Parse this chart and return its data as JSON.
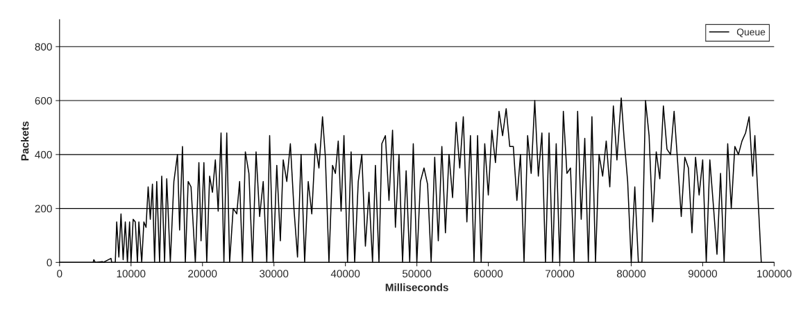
{
  "chart_data": {
    "type": "line",
    "xlabel": "Milliseconds",
    "ylabel": "Packets",
    "xlim": [
      0,
      100000
    ],
    "xticks": [
      0,
      10000,
      20000,
      30000,
      40000,
      50000,
      60000,
      70000,
      80000,
      90000,
      100000
    ],
    "ylim": [
      0,
      900
    ],
    "yticks": [
      0,
      200,
      400,
      600,
      800
    ],
    "grid": "y",
    "legend": "top right",
    "marker": "none",
    "line_style": "solid",
    "series": [
      {
        "name": "Queue",
        "color": "#000000",
        "x": [
          0,
          4700,
          4800,
          5000,
          6000,
          6100,
          7200,
          7300,
          7800,
          8000,
          8300,
          8600,
          8900,
          9200,
          9500,
          9800,
          10000,
          10300,
          10600,
          10900,
          11100,
          11500,
          11800,
          12100,
          12400,
          12700,
          13000,
          13300,
          13600,
          14000,
          14300,
          14700,
          15000,
          15500,
          16000,
          16500,
          16800,
          17200,
          17600,
          18000,
          18400,
          19000,
          19500,
          19800,
          20200,
          20600,
          21000,
          21400,
          21800,
          22200,
          22600,
          23000,
          23400,
          23800,
          24300,
          24800,
          25200,
          25600,
          26000,
          26500,
          27000,
          27500,
          28000,
          28500,
          29000,
          29400,
          29900,
          30400,
          30900,
          31300,
          31800,
          32300,
          32800,
          33300,
          33800,
          34300,
          34800,
          35300,
          35800,
          36300,
          36800,
          37200,
          37700,
          38200,
          38600,
          39000,
          39400,
          39800,
          40300,
          40800,
          41300,
          41800,
          42300,
          42800,
          43300,
          43800,
          44200,
          44700,
          45100,
          45600,
          46100,
          46600,
          47000,
          47500,
          48000,
          48500,
          49000,
          49500,
          50000,
          50500,
          51000,
          51500,
          52000,
          52500,
          53000,
          53500,
          54000,
          54500,
          55000,
          55500,
          56000,
          56500,
          57000,
          57500,
          58000,
          58500,
          59000,
          59500,
          60000,
          60500,
          61000,
          61500,
          62000,
          62500,
          63000,
          63500,
          64000,
          64500,
          65000,
          65500,
          66000,
          66500,
          67000,
          67500,
          68000,
          68500,
          69000,
          69500,
          70000,
          70500,
          71000,
          71500,
          72000,
          72500,
          73000,
          73500,
          74000,
          74500,
          75000,
          75500,
          76000,
          76500,
          77000,
          77500,
          78000,
          78600,
          79000,
          79500,
          80000,
          80500,
          81000,
          81500,
          82000,
          82500,
          83000,
          83500,
          84000,
          84500,
          85000,
          85500,
          86000,
          86500,
          87000,
          87500,
          88000,
          88500,
          89000,
          89500,
          90000,
          90500,
          91000,
          91500,
          92000,
          92500,
          93000,
          93500,
          94000,
          94500,
          95000,
          95500,
          96000,
          96500,
          97000,
          97300,
          98200
        ],
        "values": [
          0,
          0,
          10,
          0,
          3,
          0,
          15,
          0,
          0,
          150,
          20,
          180,
          10,
          150,
          0,
          150,
          0,
          160,
          150,
          0,
          150,
          0,
          150,
          130,
          280,
          160,
          290,
          0,
          300,
          0,
          320,
          0,
          310,
          0,
          300,
          400,
          120,
          430,
          0,
          300,
          280,
          0,
          370,
          80,
          370,
          0,
          320,
          260,
          380,
          190,
          480,
          0,
          480,
          0,
          200,
          180,
          300,
          0,
          410,
          330,
          0,
          410,
          170,
          300,
          0,
          470,
          0,
          360,
          80,
          380,
          300,
          440,
          200,
          20,
          400,
          0,
          300,
          180,
          440,
          350,
          540,
          390,
          0,
          360,
          330,
          450,
          190,
          470,
          0,
          410,
          0,
          300,
          400,
          60,
          260,
          0,
          360,
          0,
          440,
          470,
          230,
          490,
          130,
          400,
          0,
          340,
          0,
          440,
          0,
          300,
          350,
          290,
          0,
          390,
          80,
          430,
          110,
          400,
          240,
          520,
          350,
          540,
          150,
          470,
          0,
          470,
          0,
          440,
          250,
          490,
          370,
          560,
          470,
          570,
          430,
          430,
          230,
          400,
          0,
          470,
          330,
          600,
          320,
          480,
          0,
          480,
          0,
          440,
          0,
          560,
          330,
          350,
          0,
          560,
          160,
          460,
          0,
          540,
          0,
          400,
          320,
          450,
          280,
          580,
          380,
          610,
          460,
          300,
          0,
          280,
          0,
          0,
          600,
          470,
          150,
          410,
          310,
          580,
          420,
          400,
          560,
          370,
          170,
          390,
          350,
          110,
          390,
          250,
          380,
          0,
          380,
          210,
          30,
          330,
          0,
          440,
          200,
          430,
          400,
          450,
          480,
          540,
          320,
          470,
          0
        ]
      }
    ]
  }
}
